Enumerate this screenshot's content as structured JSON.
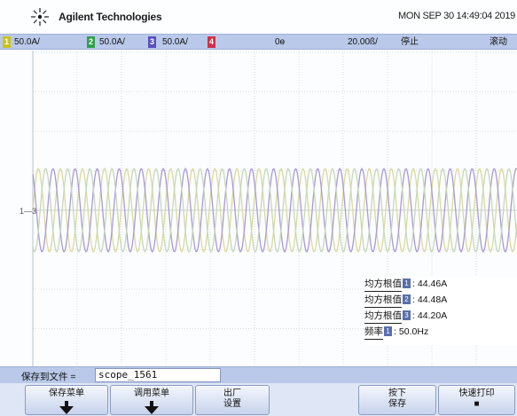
{
  "header": {
    "brand": "Agilent Technologies",
    "datetime": "MON SEP 30 14:49:04 2019"
  },
  "status_bar": {
    "channels": [
      {
        "number": "1",
        "scale": "50.0A/",
        "color": "#c9c41a"
      },
      {
        "number": "2",
        "scale": "50.0A/",
        "color": "#2fa14a"
      },
      {
        "number": "3",
        "scale": "50.0A/",
        "color": "#5a4fbf"
      },
      {
        "number": "4",
        "scale": "",
        "color": "#d0304a"
      }
    ],
    "delay": "0ɵ",
    "timebase": "20.00ß/",
    "run_state": "停止",
    "trigger_mode": "滚动"
  },
  "waveform": {
    "ground_marker": "1—3",
    "traces": [
      {
        "name": "ch1",
        "color": "#dcd99a",
        "amplitude_divs": 1.7,
        "period_divs": 1.0,
        "phase_deg": 0
      },
      {
        "name": "ch3",
        "color": "#aa99d6",
        "amplitude_divs": 1.7,
        "period_divs": 1.0,
        "phase_deg": 120
      },
      {
        "name": "ch2",
        "color": "#c6d8b7",
        "amplitude_divs": 1.7,
        "period_divs": 1.0,
        "phase_deg": 240
      }
    ]
  },
  "measurements": {
    "rows": [
      {
        "label": "均方根值",
        "channel": "1",
        "value": "44.46A"
      },
      {
        "label": "均方根值",
        "channel": "2",
        "value": "44.48A"
      },
      {
        "label": "均方根值",
        "channel": "3",
        "value": "44.20A"
      },
      {
        "label": "频率",
        "channel": "1",
        "value": "50.0Hz"
      }
    ]
  },
  "save_bar": {
    "label": "保存到文件 =",
    "filename": "scope_1561"
  },
  "softkeys": [
    {
      "line1": "保存菜单",
      "line2": "",
      "arrow": true
    },
    {
      "line1": "调用菜单",
      "line2": "",
      "arrow": true
    },
    {
      "line1": "出厂",
      "line2": "设置",
      "arrow": false
    },
    {
      "line1": "按下",
      "line2": "保存",
      "arrow": false
    },
    {
      "line1": "快速打印",
      "line2": "■",
      "arrow": false
    }
  ]
}
